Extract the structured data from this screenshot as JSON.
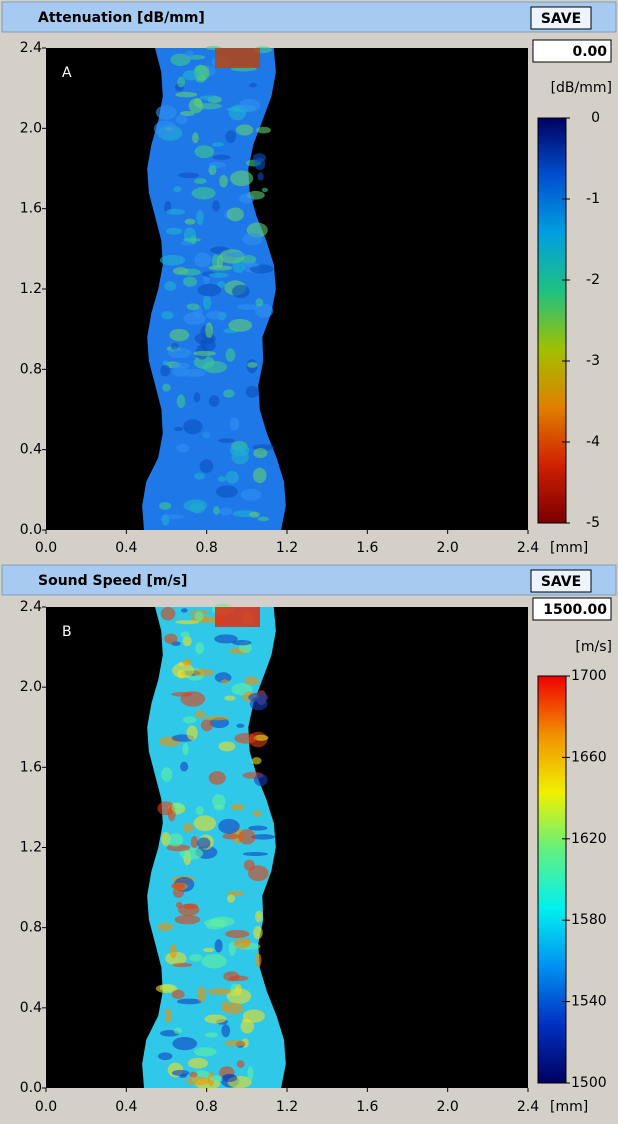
{
  "panels": [
    {
      "title": "Attenuation [dB/mm]",
      "save": "SAVE",
      "label": "A",
      "value": "0.00",
      "unit": "[dB/mm]",
      "x_unit": "[mm]",
      "xlim": [
        0,
        2.4
      ],
      "ylim": [
        0,
        2.4
      ],
      "xticks": [
        {
          "value": 0,
          "label": "0.0"
        },
        0.4,
        0.8,
        1.2,
        1.6,
        {
          "value": 2,
          "label": "2.0"
        },
        2.4
      ],
      "yticks": [
        {
          "value": 0,
          "label": "0.0"
        },
        0.4,
        0.8,
        1.2,
        1.6,
        {
          "value": 2,
          "label": "2.0"
        },
        2.4
      ],
      "colorbar_lim": [
        -5,
        0
      ],
      "colorbar_ticks": [
        0,
        -1,
        -2,
        -3,
        -4,
        -5
      ],
      "colors": [
        "#7a0000",
        "#d02000",
        "#e08000",
        "#a0c000",
        "#20c080",
        "#00a0e0",
        "#0050d0",
        "#000060"
      ]
    },
    {
      "title": "Sound Speed [m/s]",
      "save": "SAVE",
      "label": "B",
      "value": "1500.00",
      "unit": "[m/s]",
      "x_unit": "[mm]",
      "xlim": [
        0,
        2.4
      ],
      "ylim": [
        0,
        2.4
      ],
      "xticks": [
        {
          "value": 0,
          "label": "0.0"
        },
        0.4,
        0.8,
        1.2,
        1.6,
        {
          "value": 2,
          "label": "2.0"
        },
        2.4
      ],
      "yticks": [
        {
          "value": 0,
          "label": "0.0"
        },
        0.4,
        0.8,
        1.2,
        1.6,
        {
          "value": 2,
          "label": "2.0"
        },
        2.4
      ],
      "colorbar_lim": [
        1500,
        1700
      ],
      "colorbar_ticks": [
        1700,
        1660,
        1620,
        1580,
        1540,
        1500
      ],
      "colors": [
        "#000060",
        "#0030c0",
        "#0090f0",
        "#00f0f0",
        "#60f080",
        "#f0f000",
        "#f09000",
        "#f00000"
      ]
    }
  ]
}
